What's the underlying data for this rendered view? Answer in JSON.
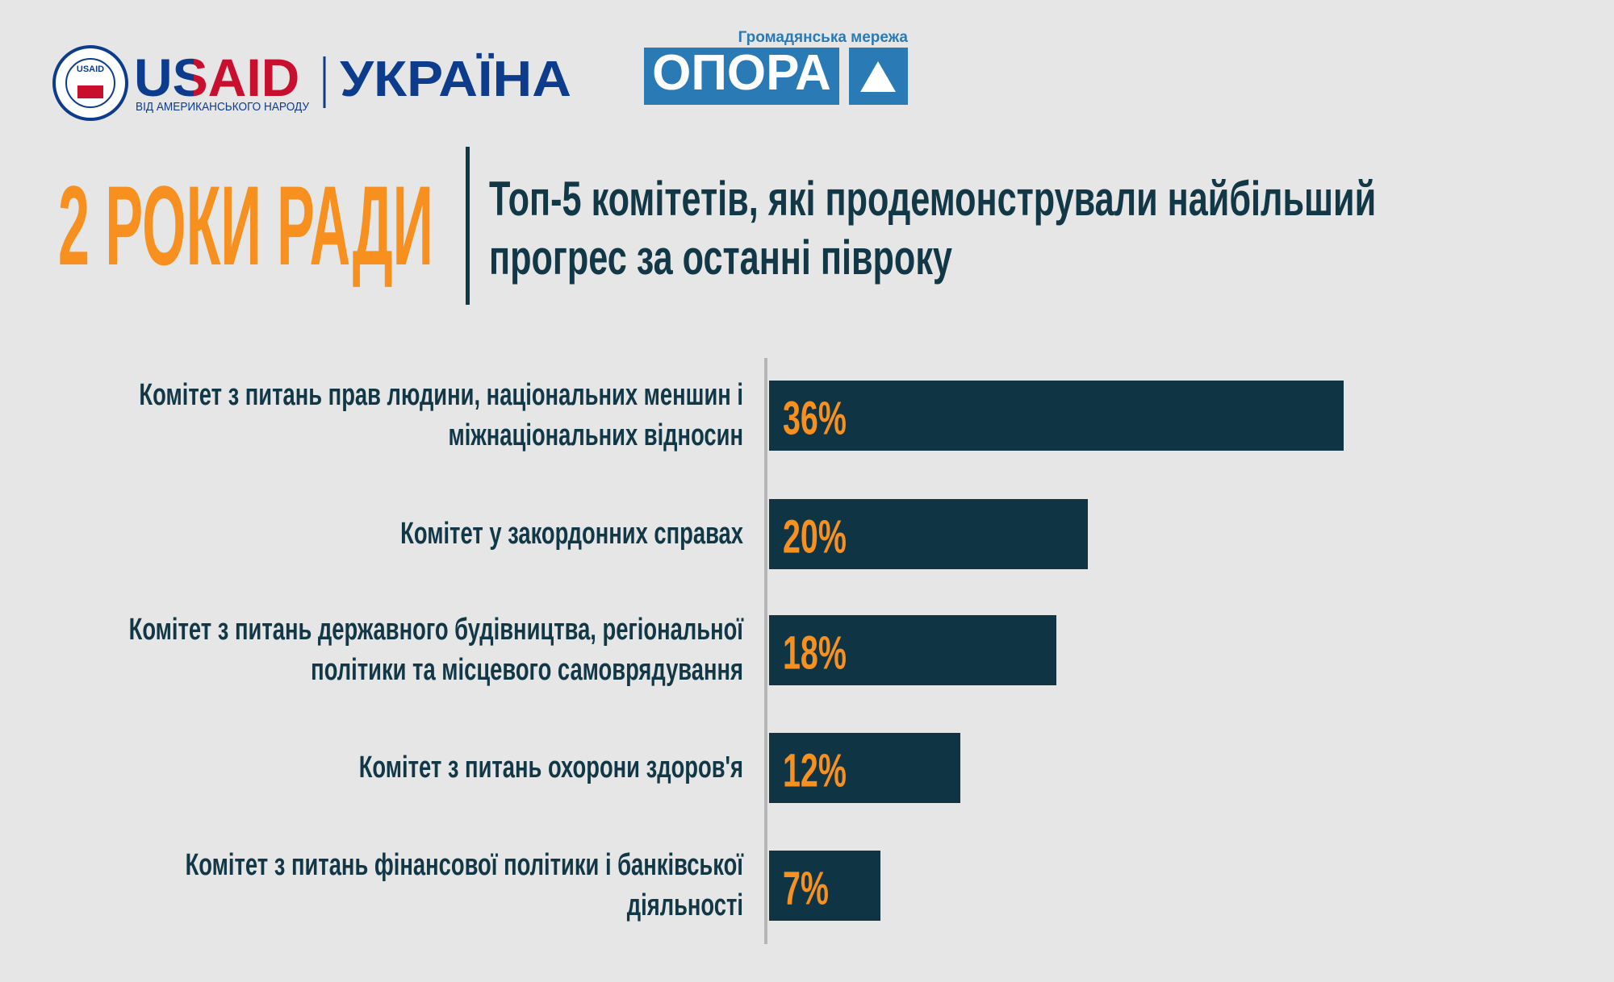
{
  "header": {
    "usaid": "USAID",
    "ukraine": "УКРАЇНА",
    "usaid_tagline": "ВІД АМЕРИКАНСЬКОГО НАРОДУ",
    "seal_text": "USAID",
    "opora_tagline": "Громадянська мережа",
    "opora": "ОПОРА"
  },
  "chart_data": {
    "type": "bar",
    "orientation": "horizontal",
    "kicker": "2 РОКИ РАДИ",
    "title": "Топ-5 комітетів, які продемонстрували найбільший прогрес за останні півроку",
    "categories": [
      "Комітет з питань прав людини, національних меншин і міжнаціональних відносин",
      "Комітет у закордонних справах",
      "Комітет з питань державного будівництва, регіональної політики та місцевого самоврядування",
      "Комітет з питань охорони здоров'я",
      "Комітет з питань фінансової політики і банківської діяльності"
    ],
    "values": [
      36,
      20,
      18,
      12,
      7
    ],
    "value_labels": [
      "36%",
      "20%",
      "18%",
      "12%",
      "7%"
    ],
    "color": "#0f3444",
    "label_color": "#f7901e"
  }
}
